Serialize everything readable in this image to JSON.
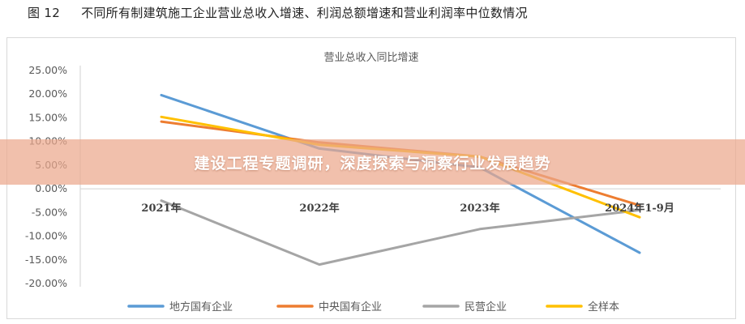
{
  "figure": {
    "number": "图 12",
    "caption": "不同所有制建筑施工企业营业总收入增速、利润总额增速和营业利润率中位数情况"
  },
  "banner": {
    "text": "建设工程专题调研，深度探索与洞察行业发展趋势",
    "color": "#eca88c"
  },
  "chart_data": {
    "type": "line",
    "title": "营业总收入同比增速",
    "xlabel": "",
    "ylabel": "",
    "categories": [
      "2021年",
      "2022年",
      "2023年",
      "2024年1-9月"
    ],
    "ylim": [
      -20,
      25
    ],
    "yticks": [
      "25.00%",
      "20.00%",
      "15.00%",
      "10.00%",
      "5.00%",
      "0.00%",
      "-5.00%",
      "-10.00%",
      "-15.00%",
      "-20.00%"
    ],
    "grid": false,
    "legend": "bottom",
    "series": [
      {
        "name": "地方国有企业",
        "color": "#5b9bd5",
        "values": [
          19.8,
          8.5,
          4.5,
          -13.5
        ]
      },
      {
        "name": "中央国有企业",
        "color": "#ed7d31",
        "values": [
          14.2,
          9.8,
          6.8,
          -3.5
        ]
      },
      {
        "name": "民营企业",
        "color": "#a5a5a5",
        "values": [
          -2.5,
          -16.0,
          -8.5,
          -4.5
        ]
      },
      {
        "name": "全样本",
        "color": "#ffc000",
        "values": [
          15.2,
          9.3,
          6.8,
          -6.0
        ]
      }
    ]
  }
}
